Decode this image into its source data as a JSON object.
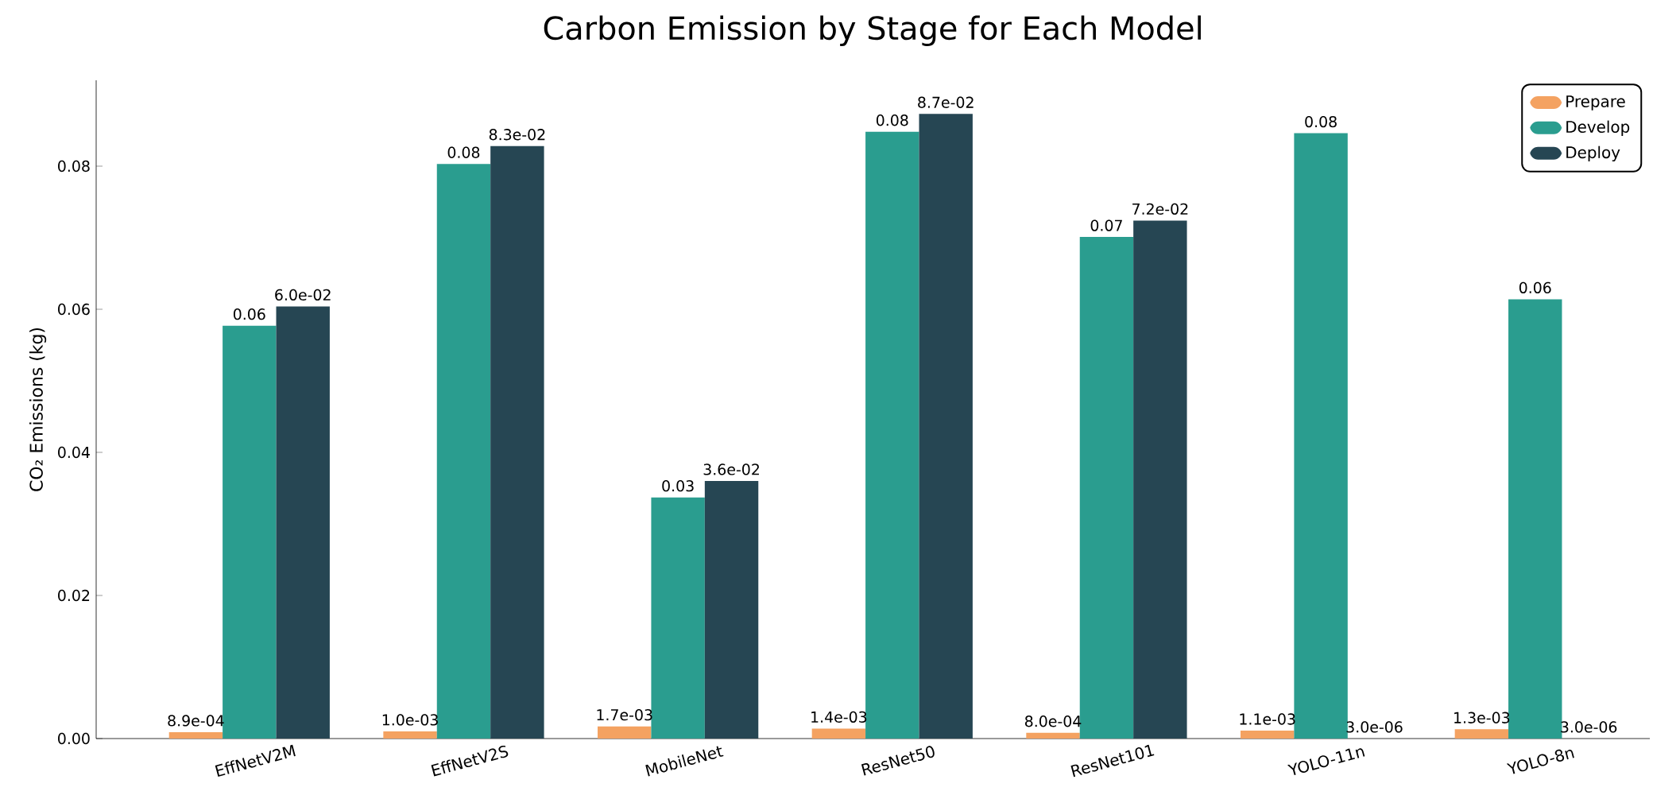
{
  "chart_data": {
    "type": "bar",
    "title": "Carbon Emission by Stage for Each Model",
    "ylabel": "CO₂ Emissions (kg)",
    "categories": [
      "EffNetV2M",
      "EffNetV2S",
      "MobileNet",
      "ResNet50",
      "ResNet101",
      "YOLO-11n",
      "YOLO-8n"
    ],
    "series": [
      {
        "name": "Prepare",
        "color": "#f4a261",
        "values": [
          0.00089,
          0.001,
          0.0017,
          0.0014,
          0.0008,
          0.0011,
          0.0013
        ],
        "value_labels": [
          "8.9e-04",
          "1.0e-03",
          "1.7e-03",
          "1.4e-03",
          "8.0e-04",
          "1.1e-03",
          "1.3e-03"
        ]
      },
      {
        "name": "Develop",
        "color": "#2a9d8f",
        "values": [
          0.0577,
          0.0803,
          0.0337,
          0.0848,
          0.0701,
          0.0846,
          0.0614
        ],
        "value_labels": [
          "0.06",
          "0.08",
          "0.03",
          "0.08",
          "0.07",
          "0.08",
          "0.06"
        ]
      },
      {
        "name": "Deploy",
        "color": "#264653",
        "values": [
          0.0604,
          0.0828,
          0.036,
          0.0873,
          0.0724,
          3e-06,
          3e-06
        ],
        "value_labels": [
          "6.0e-02",
          "8.3e-02",
          "3.6e-02",
          "8.7e-02",
          "7.2e-02",
          "3.0e-06",
          "3.0e-06"
        ]
      }
    ],
    "ylim": [
      0,
      0.092
    ],
    "yticks": [
      {
        "value": 0,
        "label": "0.00"
      },
      {
        "value": 0.02,
        "label": "0.02"
      },
      {
        "value": 0.04,
        "label": "0.04"
      },
      {
        "value": 0.06,
        "label": "0.06"
      },
      {
        "value": 0.08,
        "label": "0.08"
      }
    ],
    "legend": "top right"
  }
}
